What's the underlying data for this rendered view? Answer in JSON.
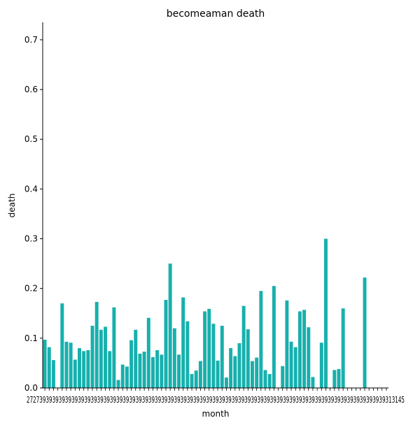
{
  "chart_data": {
    "type": "bar",
    "title": "becomeaman death",
    "xlabel": "month",
    "ylabel": "death",
    "ylim": [
      0,
      0.735
    ],
    "yticks": [
      0.0,
      0.1,
      0.2,
      0.3,
      0.4,
      0.5,
      0.6,
      0.7
    ],
    "ytick_labels": [
      "0.0",
      "0.1",
      "0.2",
      "0.3",
      "0.4",
      "0.5",
      "0.6",
      "0.7"
    ],
    "bar_color": "#17b0ad",
    "grid": false,
    "legend": "none",
    "categories_visible_text": "2727393939393939393939393939393939393939393939393939393939393939393939393939393939393939393939393939393939393939313145",
    "values": [
      0.097,
      0.082,
      0.056,
      0,
      0.17,
      0.093,
      0.091,
      0.057,
      0.08,
      0.074,
      0.076,
      0.125,
      0.173,
      0.117,
      0.123,
      0.074,
      0.162,
      0.016,
      0.047,
      0.043,
      0.096,
      0.117,
      0.069,
      0.073,
      0.141,
      0.062,
      0.076,
      0.067,
      0.177,
      0.25,
      0.12,
      0.067,
      0.182,
      0.134,
      0.028,
      0.035,
      0.054,
      0.154,
      0.159,
      0.129,
      0.055,
      0.125,
      0.021,
      0.08,
      0.064,
      0.09,
      0.165,
      0.118,
      0.054,
      0.061,
      0.195,
      0.036,
      0.028,
      0.205,
      0,
      0.044,
      0.176,
      0.093,
      0.082,
      0.154,
      0.157,
      0.122,
      0.022,
      0,
      0.091,
      0.3,
      0,
      0.036,
      0.038,
      0.16,
      0,
      0,
      0,
      0,
      0.222,
      0,
      0,
      0,
      0,
      0
    ]
  }
}
